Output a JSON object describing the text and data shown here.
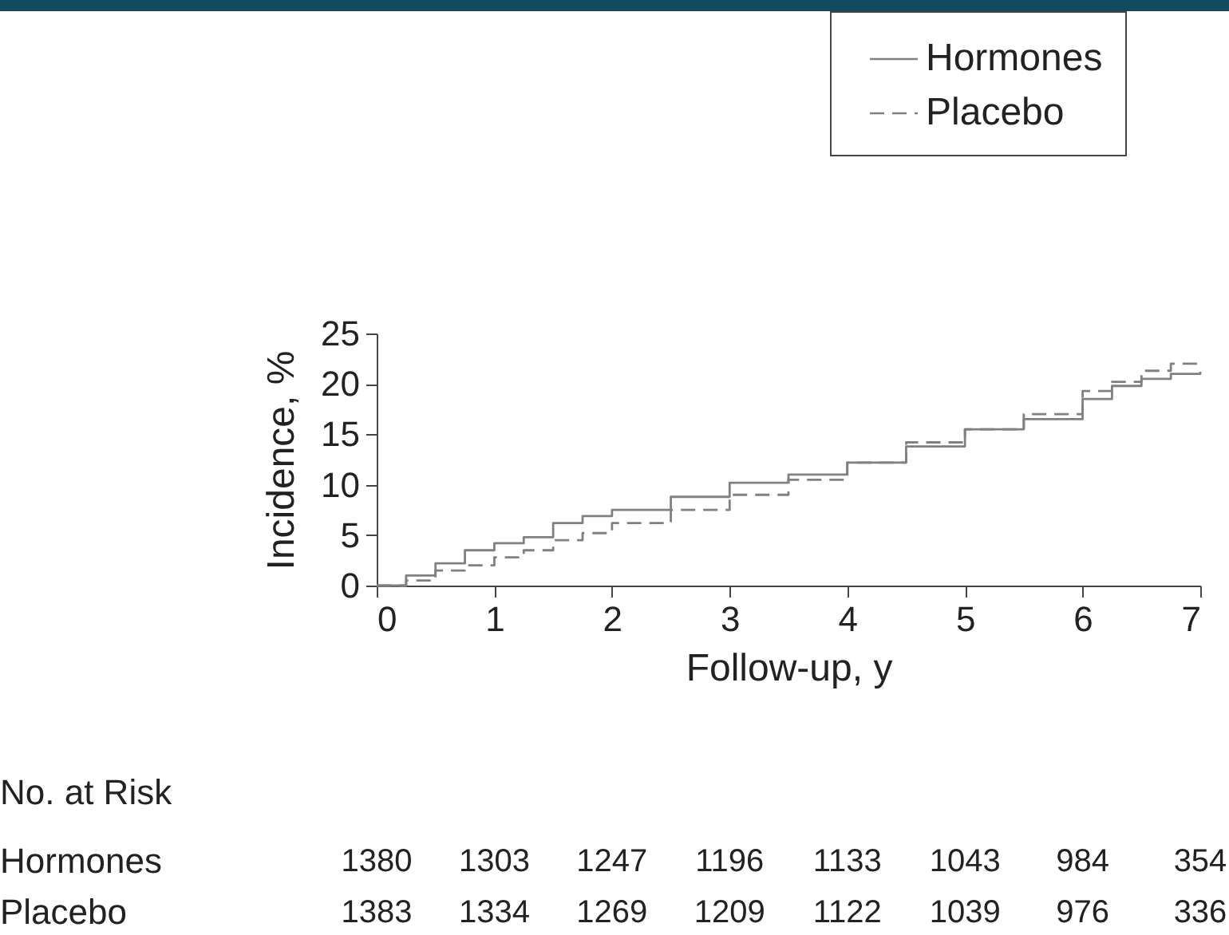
{
  "chart_data": {
    "type": "step",
    "xlabel": "Follow-up, y",
    "ylabel": "Incidence, %",
    "x": [
      0,
      0.25,
      0.5,
      0.75,
      1,
      1.25,
      1.5,
      1.75,
      2,
      2.5,
      3,
      3.5,
      4,
      4.5,
      5,
      5.5,
      6,
      6.25,
      6.5,
      6.75,
      7
    ],
    "series": [
      {
        "name": "Hormones",
        "color": "#808080",
        "line_style": "solid",
        "values": [
          0,
          1,
          2.2,
          3.5,
          4.2,
          4.8,
          6.2,
          6.9,
          7.5,
          8.8,
          10.2,
          11,
          12.2,
          13.8,
          15.5,
          16.5,
          18.5,
          19.8,
          20.5,
          21,
          21.2
        ]
      },
      {
        "name": "Placebo",
        "color": "#808080",
        "line_style": "dashed",
        "values": [
          0,
          0.5,
          1.5,
          2,
          2.8,
          3.5,
          4.5,
          5.2,
          6.2,
          7.5,
          9,
          10.5,
          12.2,
          14.2,
          15.5,
          17,
          19.3,
          20.2,
          21.3,
          22,
          22
        ]
      }
    ],
    "xlim": [
      0,
      7
    ],
    "xticks": [
      0,
      1,
      2,
      3,
      4,
      5,
      6,
      7
    ],
    "ylim": [
      0,
      25
    ],
    "yticks": [
      0,
      5,
      10,
      15,
      20,
      25
    ],
    "grid": false,
    "legend": "top right",
    "marker": "none",
    "annotations": [
      "No. at Risk",
      "Hormones 1380 1303 1247 1196 1133 1043 984 354",
      "Placebo 1383 1334 1269 1209 1122 1039 976 336"
    ]
  }
}
